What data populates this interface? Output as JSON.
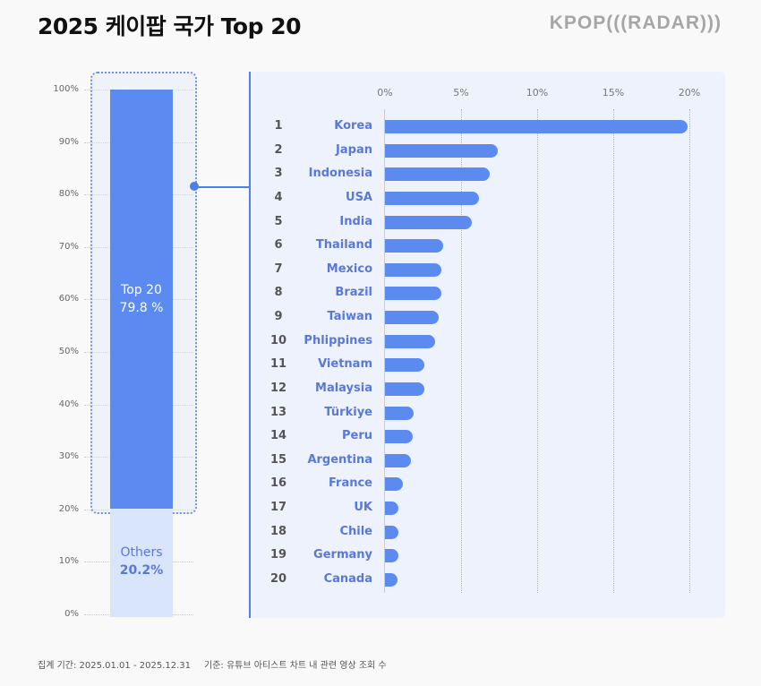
{
  "header": {
    "title": "2025 케이팝 국가 Top 20",
    "logo": "KPOP(((RADAR)))"
  },
  "colors": {
    "bar": "#5b8bf0",
    "others": "#d9e5fb",
    "label": "#5a78d8",
    "panel": "#edf2fc"
  },
  "chart_data": [
    {
      "type": "bar",
      "orientation": "vertical-stacked",
      "yticks": [
        "0%",
        "10%",
        "20%",
        "30%",
        "40%",
        "50%",
        "60%",
        "70%",
        "80%",
        "90%",
        "100%"
      ],
      "ylim": [
        0,
        100
      ],
      "series": [
        {
          "name": "Top 20",
          "value": 79.8,
          "label": "Top 20",
          "value_label": "79.8 %"
        },
        {
          "name": "Others",
          "value": 20.2,
          "label": "Others",
          "value_label": "20.2%"
        }
      ]
    },
    {
      "type": "bar",
      "orientation": "horizontal",
      "xticks": [
        "0%",
        "5%",
        "10%",
        "15%",
        "20%"
      ],
      "xlim": [
        0,
        20
      ],
      "ranks": [
        "1",
        "2",
        "3",
        "4",
        "5",
        "6",
        "7",
        "8",
        "9",
        "10",
        "11",
        "12",
        "13",
        "14",
        "15",
        "16",
        "17",
        "18",
        "19",
        "20"
      ],
      "categories": [
        "Korea",
        "Japan",
        "Indonesia",
        "USA",
        "India",
        "Thailand",
        "Mexico",
        "Brazil",
        "Taiwan",
        "Phlippines",
        "Vietnam",
        "Malaysia",
        "Türkiye",
        "Peru",
        "Argentina",
        "France",
        "UK",
        "Chile",
        "Germany",
        "Canada"
      ],
      "values": [
        19.9,
        7.4,
        6.9,
        6.2,
        5.7,
        3.8,
        3.7,
        3.7,
        3.5,
        3.3,
        2.6,
        2.6,
        1.9,
        1.8,
        1.7,
        1.2,
        0.9,
        0.9,
        0.9,
        0.8
      ]
    }
  ],
  "footer": {
    "period": "집계 기간: 2025.01.01 - 2025.12.31",
    "basis": "기준: 유튜브 아티스트 차트 내 관련 영상 조회 수"
  }
}
